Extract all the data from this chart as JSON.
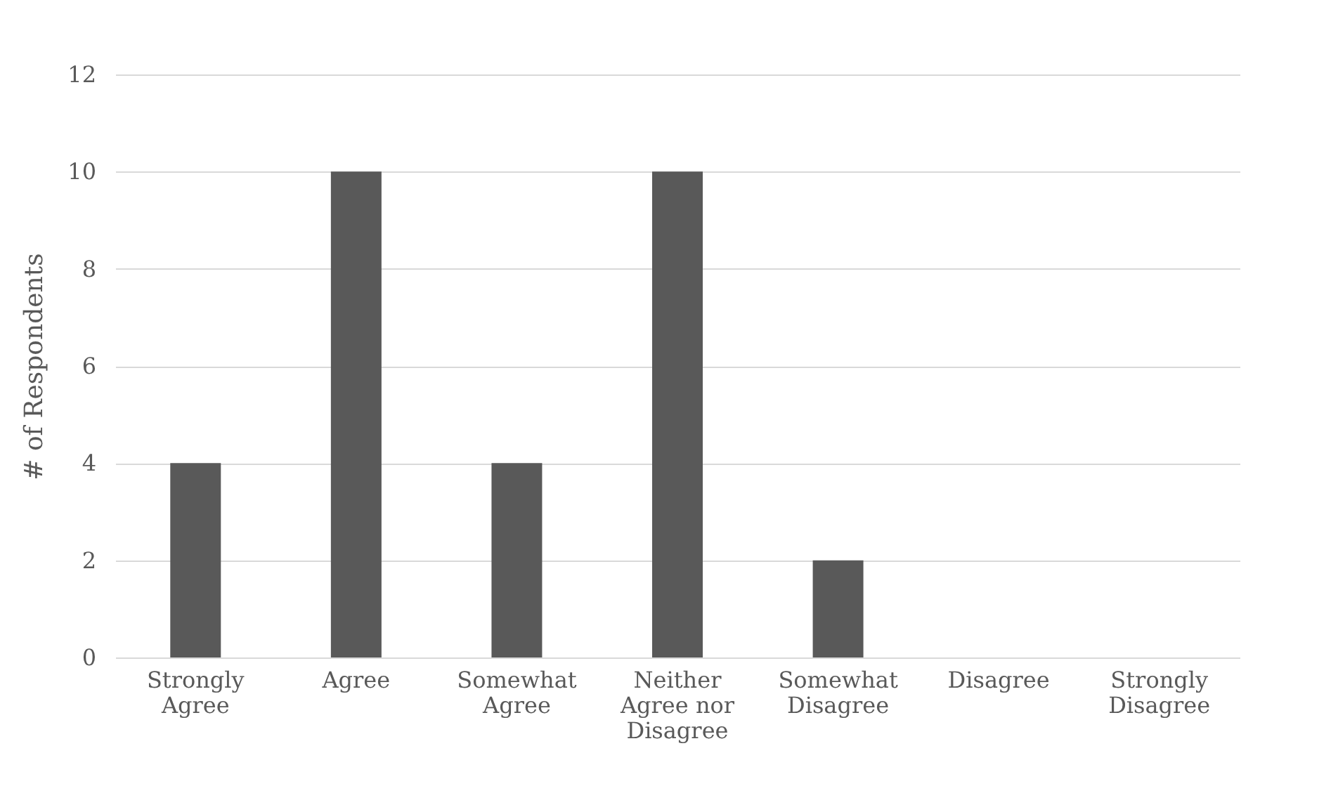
{
  "chart_data": {
    "type": "bar",
    "ylabel": "# of Respondents",
    "categories": [
      "Strongly Agree",
      "Agree",
      "Somewhat Agree",
      "Neither Agree nor Disagree",
      "Somewhat Disagree",
      "Disagree",
      "Strongly Disagree"
    ],
    "values": [
      4,
      10,
      4,
      10,
      2,
      0,
      0
    ],
    "color": "#595959",
    "ylim": [
      0,
      12
    ],
    "yticks": [
      0,
      2,
      4,
      6,
      8,
      10,
      12
    ],
    "grid": "y"
  }
}
